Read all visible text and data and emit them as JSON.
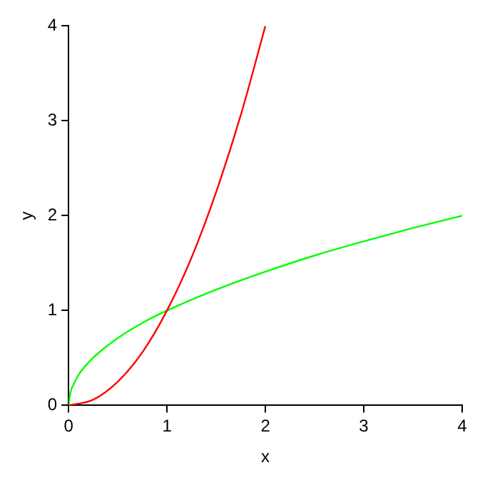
{
  "chart_data": {
    "type": "line",
    "xlabel": "x",
    "ylabel": "y",
    "xlim": [
      0,
      4
    ],
    "ylim": [
      0,
      4
    ],
    "xticks": [
      0,
      1,
      2,
      3,
      4
    ],
    "yticks": [
      0,
      1,
      2,
      3,
      4
    ],
    "grid": false,
    "legend": false,
    "marker": "none",
    "line_style": "solid",
    "series": [
      {
        "color": "#ff0000",
        "x": [
          0,
          0.25,
          0.5,
          0.75,
          1,
          1.25,
          1.5,
          1.75,
          2
        ],
        "values": [
          0,
          0.06,
          0.25,
          0.56,
          1,
          1.56,
          2.25,
          3.06,
          4
        ]
      },
      {
        "color": "#00ff00",
        "x": [
          0,
          0.02,
          0.05,
          0.1,
          0.2,
          0.3,
          0.5,
          0.75,
          1,
          1.5,
          2,
          2.5,
          3,
          3.5,
          4
        ],
        "values": [
          0,
          0.14,
          0.22,
          0.32,
          0.45,
          0.55,
          0.71,
          0.87,
          1,
          1.22,
          1.41,
          1.58,
          1.73,
          1.87,
          2
        ]
      }
    ]
  }
}
